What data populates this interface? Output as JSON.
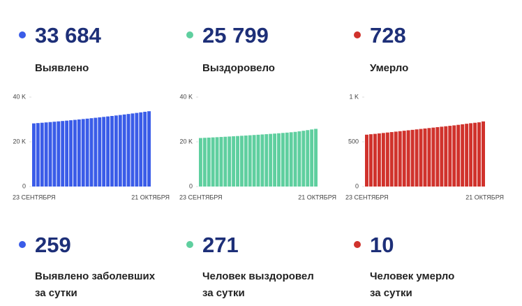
{
  "totals": [
    {
      "value": "33 684",
      "label": "Выявлено"
    },
    {
      "value": "25 799",
      "label": "Выздоровело"
    },
    {
      "value": "728",
      "label": "Умерло"
    }
  ],
  "daily": [
    {
      "value": "259",
      "label": [
        "Выявлено заболевших",
        "за сутки"
      ]
    },
    {
      "value": "271",
      "label": [
        "Человек выздоровел",
        "за сутки"
      ]
    },
    {
      "value": "10",
      "label": [
        "Человек умерло",
        "за сутки"
      ]
    }
  ],
  "chart_data": [
    {
      "type": "bar",
      "color": "#3a5ce8",
      "categories": [
        "23 СЕНТЯБРЯ",
        null,
        null,
        null,
        null,
        null,
        null,
        null,
        null,
        null,
        null,
        null,
        null,
        null,
        null,
        null,
        null,
        null,
        null,
        null,
        null,
        null,
        null,
        null,
        null,
        null,
        null,
        null,
        "21 ОКТЯБРЯ"
      ],
      "values": [
        28240,
        28385,
        28530,
        28680,
        28835,
        28990,
        29150,
        29315,
        29480,
        29650,
        29825,
        30005,
        30185,
        30370,
        30560,
        30755,
        30950,
        31150,
        31355,
        31565,
        31780,
        32000,
        32225,
        32450,
        32690,
        32930,
        33175,
        33425,
        33684
      ],
      "ylim": [
        0,
        40000
      ],
      "yticks": [
        0,
        {
          "value": 20000,
          "label": "20 K"
        },
        {
          "value": 40000,
          "label": "40 K"
        }
      ]
    },
    {
      "type": "bar",
      "color": "#5fcf9f",
      "categories": [
        "23 СЕНТЯБРЯ",
        null,
        null,
        null,
        null,
        null,
        null,
        null,
        null,
        null,
        null,
        null,
        null,
        null,
        null,
        null,
        null,
        null,
        null,
        null,
        null,
        null,
        null,
        null,
        null,
        null,
        null,
        null,
        "21 ОКТЯБРЯ"
      ],
      "values": [
        21700,
        21790,
        21880,
        21975,
        22070,
        22170,
        22270,
        22375,
        22480,
        22590,
        22700,
        22815,
        22930,
        23050,
        23170,
        23295,
        23420,
        23550,
        23685,
        23825,
        23970,
        24120,
        24280,
        24450,
        24690,
        24950,
        25230,
        25528,
        25799
      ],
      "ylim": [
        0,
        40000
      ],
      "yticks": [
        0,
        {
          "value": 20000,
          "label": "20 K"
        },
        {
          "value": 40000,
          "label": "40 K"
        }
      ]
    },
    {
      "type": "bar",
      "color": "#d0322c",
      "categories": [
        "23 СЕНТЯБРЯ",
        null,
        null,
        null,
        null,
        null,
        null,
        null,
        null,
        null,
        null,
        null,
        null,
        null,
        null,
        null,
        null,
        null,
        null,
        null,
        null,
        null,
        null,
        null,
        null,
        null,
        null,
        null,
        "21 ОКТЯБРЯ"
      ],
      "values": [
        580,
        585,
        589,
        594,
        599,
        604,
        609,
        614,
        619,
        624,
        629,
        634,
        639,
        644,
        649,
        654,
        659,
        664,
        669,
        674,
        679,
        684,
        690,
        696,
        702,
        708,
        713,
        718,
        728
      ],
      "ylim": [
        0,
        1000
      ],
      "yticks": [
        0,
        500,
        {
          "value": 1000,
          "label": "1 K"
        }
      ]
    }
  ]
}
